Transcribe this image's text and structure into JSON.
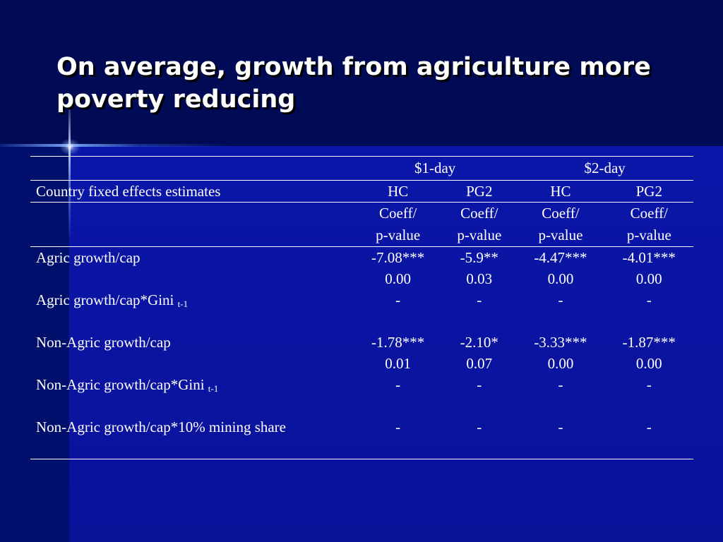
{
  "title": "On average, growth from agriculture more poverty reducing",
  "table": {
    "group_headers": [
      "$1-day",
      "$2-day"
    ],
    "row_header_label": "Country fixed effects estimates",
    "sub_headers": [
      "HC",
      "PG2",
      "HC",
      "PG2"
    ],
    "stat_header_line1": "Coeff/",
    "stat_header_line2": "p-value",
    "rows": [
      {
        "label": "Agric growth/cap",
        "subscript": "",
        "coeffs": [
          "-7.08***",
          "-5.9**",
          "-4.47***",
          "-4.01***"
        ],
        "pvalues": [
          "0.00",
          "0.03",
          "0.00",
          "0.00"
        ]
      },
      {
        "label": "Agric growth/cap*Gini",
        "subscript": "t-1",
        "coeffs": [
          "-",
          "-",
          "-",
          "-"
        ],
        "pvalues": [
          "",
          "",
          "",
          ""
        ]
      },
      {
        "label": "Non-Agric growth/cap",
        "subscript": "",
        "coeffs": [
          "-1.78***",
          "-2.10*",
          "-3.33***",
          "-1.87***"
        ],
        "pvalues": [
          "0.01",
          "0.07",
          "0.00",
          "0.00"
        ]
      },
      {
        "label": "Non-Agric growth/cap*Gini",
        "subscript": "t-1",
        "coeffs": [
          "-",
          "-",
          "-",
          "-"
        ],
        "pvalues": [
          "",
          "",
          "",
          ""
        ]
      },
      {
        "label": "Non-Agric growth/cap*10% mining share",
        "subscript": "",
        "coeffs": [
          "-",
          "-",
          "-",
          "-"
        ],
        "pvalues": []
      }
    ]
  },
  "colors": {
    "background": "#06067a",
    "text": "#ffffff"
  }
}
